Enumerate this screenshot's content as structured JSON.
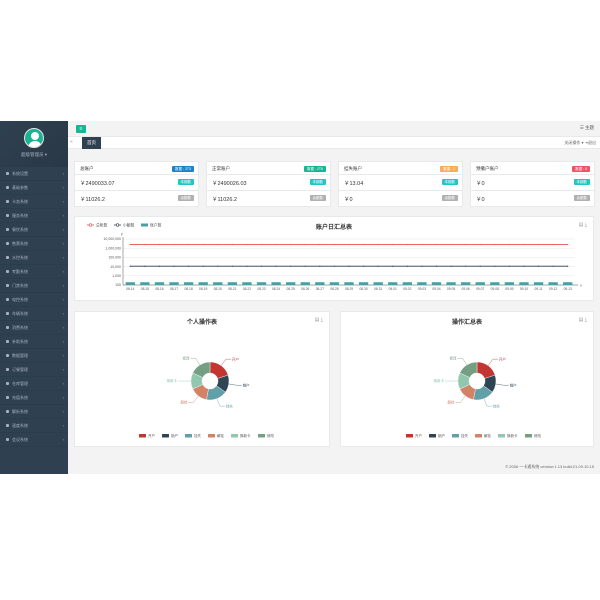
{
  "sidebar": {
    "user_name": "超级管理员 ▾",
    "items": [
      {
        "label": "系统设置"
      },
      {
        "label": "基础参数"
      },
      {
        "label": "卡务系统"
      },
      {
        "label": "服务系统"
      },
      {
        "label": "餐饮系统"
      },
      {
        "label": "售票系统"
      },
      {
        "label": "水控系统"
      },
      {
        "label": "考勤系统"
      },
      {
        "label": "门禁系统"
      },
      {
        "label": "电控系统"
      },
      {
        "label": "车辆系统"
      },
      {
        "label": "消费系统"
      },
      {
        "label": "补助系统"
      },
      {
        "label": "数据管理"
      },
      {
        "label": "订餐管理"
      },
      {
        "label": "仓库管理"
      },
      {
        "label": "充值系统"
      },
      {
        "label": "解析系统"
      },
      {
        "label": "速度系统"
      },
      {
        "label": "会议系统"
      }
    ]
  },
  "topbar": {
    "theme_label": "☰ 主题"
  },
  "tabs": {
    "home": "首页",
    "right_label": "关闭操作 ▾   ⇥退出"
  },
  "accounts": [
    {
      "title": "总账户",
      "badge": "数据 : 2T3",
      "badge_color": "#1c84c6",
      "value1": "￥2490033.07",
      "tag1": "本期数",
      "tag1_color": "#23c6c8",
      "value2": "￥11026.2",
      "tag2": "余额数",
      "tag2_color": "#b0b0b0"
    },
    {
      "title": "正常账户",
      "badge": "数据 : 2T5",
      "badge_color": "#1ab394",
      "value1": "￥2490026.03",
      "tag1": "本期数",
      "tag1_color": "#23c6c8",
      "value2": "￥11026.2",
      "tag2": "余额数",
      "tag2_color": "#b0b0b0"
    },
    {
      "title": "挂失账户",
      "badge": "数据 : 2",
      "badge_color": "#f8ac59",
      "value1": "￥13.04",
      "tag1": "本期数",
      "tag1_color": "#23c6c8",
      "value2": "￥0",
      "tag2": "余额数",
      "tag2_color": "#b0b0b0"
    },
    {
      "title": "预撤户账户",
      "badge": "数据 : 0",
      "badge_color": "#ed5565",
      "value1": "￥0",
      "tag1": "本期数",
      "tag1_color": "#23c6c8",
      "value2": "￥0",
      "tag2": "余额数",
      "tag2_color": "#b0b0b0"
    }
  ],
  "chart_data": [
    {
      "type": "line",
      "title": "账户日汇总表",
      "scale": "log",
      "y_ticks": [
        "10,000,000",
        "1,000,000",
        "100,000",
        "10,000",
        "1,000",
        "100"
      ],
      "ylim": [
        100,
        10000000
      ],
      "categories": [
        "08.14",
        "08.15",
        "08.16",
        "08.17",
        "08.18",
        "08.19",
        "08.20",
        "08.21",
        "08.22",
        "08.23",
        "08.24",
        "08.25",
        "08.26",
        "08.27",
        "08.28",
        "08.29",
        "08.30",
        "08.31",
        "09.01",
        "09.02",
        "09.03",
        "09.04",
        "09.05",
        "09.06",
        "09.07",
        "09.08",
        "09.09",
        "09.10",
        "09.11",
        "09.12",
        "09.13"
      ],
      "legend": [
        "总帐数",
        "小额数",
        "账户数"
      ],
      "series": [
        {
          "name": "总帐数",
          "color": "#e84d4d",
          "kind": "line",
          "value": 2490033
        },
        {
          "name": "小额数",
          "color": "#2f4050",
          "kind": "line",
          "value": 11026
        },
        {
          "name": "账户数",
          "color": "#4d9ca7",
          "kind": "bar",
          "value": 200
        }
      ]
    },
    {
      "type": "pie",
      "title": "个人操作表",
      "legend": [
        "开户",
        "销户",
        "挂失",
        "解挂",
        "换新卡",
        "修改"
      ],
      "slices": [
        {
          "name": "开户",
          "value": 20,
          "color": "#c23531"
        },
        {
          "name": "销户",
          "value": 15,
          "color": "#2f4554"
        },
        {
          "name": "挂失",
          "value": 18,
          "color": "#61a0a8"
        },
        {
          "name": "解挂",
          "value": 15,
          "color": "#d48265"
        },
        {
          "name": "换新卡",
          "value": 14,
          "color": "#91c7ae"
        },
        {
          "name": "修改",
          "value": 18,
          "color": "#749f83"
        }
      ]
    },
    {
      "type": "pie",
      "title": "操作汇总表",
      "legend": [
        "开户",
        "销户",
        "挂失",
        "解挂",
        "换新卡",
        "修改"
      ],
      "slices": [
        {
          "name": "开户",
          "value": 20,
          "color": "#c23531"
        },
        {
          "name": "销户",
          "value": 15,
          "color": "#2f4554"
        },
        {
          "name": "挂失",
          "value": 18,
          "color": "#61a0a8"
        },
        {
          "name": "解挂",
          "value": 15,
          "color": "#d48265"
        },
        {
          "name": "换新卡",
          "value": 14,
          "color": "#91c7ae"
        },
        {
          "name": "修改",
          "value": 18,
          "color": "#749f83"
        }
      ]
    }
  ],
  "footer": "© 2006 一卡通系统 version:1.13 build:21.09.10.15"
}
